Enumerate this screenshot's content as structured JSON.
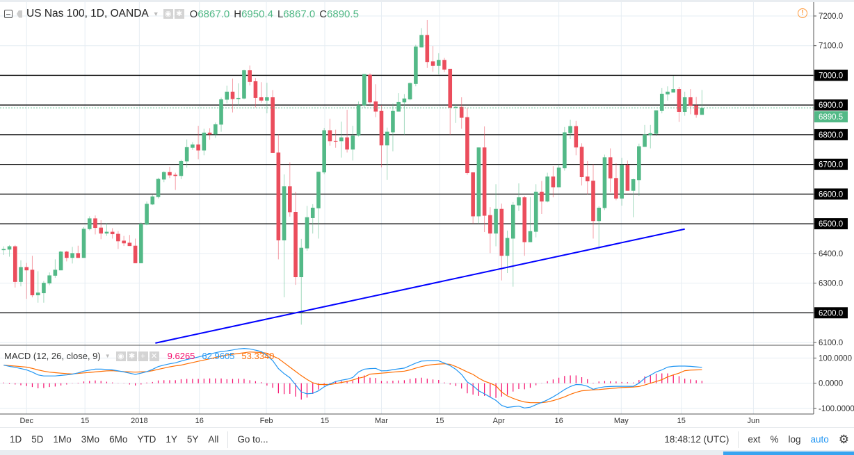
{
  "header": {
    "symbol_title": "US Nas 100, 1D, OANDA",
    "open_label": "O",
    "open": "6867.0",
    "high_label": "H",
    "high": "6950.4",
    "low_label": "L",
    "low": "6867.0",
    "close_label": "C",
    "close": "6890.5"
  },
  "icons": {
    "collapse": "minus-square-icon",
    "flag": "flag-icon",
    "visibility": "eye-icon",
    "settings": "gear-icon",
    "alert": "alert-circle-icon"
  },
  "colors": {
    "up": "#53b987",
    "down": "#eb4d5c",
    "trendline": "#0000ff",
    "macd": "#2196f3",
    "signal": "#ff6d00",
    "histogram": "#f50a6b",
    "level_line": "#000000"
  },
  "price_axis": {
    "ticks": [
      "7200.0",
      "7100.0",
      "7000.0",
      "6900.0",
      "6800.0",
      "6700.0",
      "6600.0",
      "6500.0",
      "6400.0",
      "6300.0",
      "6200.0",
      "6100.0"
    ],
    "range": [
      6100,
      7200
    ],
    "last_price_label": "6890.5",
    "last_price": 6890.5
  },
  "levels": [
    {
      "price": 7000,
      "label": "7000.0"
    },
    {
      "price": 6900,
      "label": "6900.0"
    },
    {
      "price": 6800,
      "label": "6800.0"
    },
    {
      "price": 6700,
      "label": "6700.0"
    },
    {
      "price": 6600,
      "label": "6600.0"
    },
    {
      "price": 6500,
      "label": "6500.0"
    },
    {
      "price": 6200,
      "label": "6200.0"
    }
  ],
  "trendline": {
    "start_price": 6098,
    "end_price": 6482
  },
  "time_axis": {
    "labels": [
      "Dec",
      "15",
      "2018",
      "16",
      "Feb",
      "15",
      "Mar",
      "15",
      "Apr",
      "16",
      "May",
      "15",
      "Jun"
    ]
  },
  "chart_data": {
    "type": "candlestick",
    "ohlc_order": [
      "open",
      "high",
      "low",
      "close"
    ],
    "ylim": [
      6100,
      7200
    ],
    "candles": [
      [
        6411,
        6424,
        6395,
        6415
      ],
      [
        6413,
        6428,
        6389,
        6424
      ],
      [
        6424,
        6428,
        6285,
        6304
      ],
      [
        6304,
        6377,
        6289,
        6354
      ],
      [
        6354,
        6368,
        6247,
        6343
      ],
      [
        6345,
        6392,
        6252,
        6259
      ],
      [
        6259,
        6340,
        6234,
        6268
      ],
      [
        6266,
        6307,
        6234,
        6301
      ],
      [
        6299,
        6336,
        6293,
        6326
      ],
      [
        6325,
        6380,
        6318,
        6345
      ],
      [
        6343,
        6409,
        6343,
        6406
      ],
      [
        6406,
        6409,
        6373,
        6385
      ],
      [
        6385,
        6422,
        6366,
        6401
      ],
      [
        6401,
        6426,
        6385,
        6385
      ],
      [
        6385,
        6489,
        6385,
        6483
      ],
      [
        6482,
        6525,
        6478,
        6518
      ],
      [
        6518,
        6528,
        6464,
        6486
      ],
      [
        6487,
        6512,
        6448,
        6467
      ],
      [
        6467,
        6502,
        6459,
        6473
      ],
      [
        6473,
        6485,
        6450,
        6465
      ],
      [
        6466,
        6475,
        6415,
        6441
      ],
      [
        6443,
        6459,
        6425,
        6434
      ],
      [
        6436,
        6462,
        6425,
        6425
      ],
      [
        6426,
        6450,
        6367,
        6367
      ],
      [
        6367,
        6505,
        6367,
        6500
      ],
      [
        6497,
        6575,
        6495,
        6567
      ],
      [
        6565,
        6597,
        6563,
        6592
      ],
      [
        6590,
        6655,
        6585,
        6651
      ],
      [
        6649,
        6677,
        6640,
        6674
      ],
      [
        6674,
        6692,
        6654,
        6663
      ],
      [
        6665,
        6672,
        6614,
        6661
      ],
      [
        6661,
        6716,
        6650,
        6711
      ],
      [
        6710,
        6784,
        6689,
        6758
      ],
      [
        6756,
        6775,
        6749,
        6767
      ],
      [
        6767,
        6830,
        6717,
        6747
      ],
      [
        6747,
        6820,
        6731,
        6807
      ],
      [
        6807,
        6822,
        6783,
        6801
      ],
      [
        6801,
        6841,
        6789,
        6835
      ],
      [
        6834,
        6925,
        6810,
        6919
      ],
      [
        6918,
        6965,
        6906,
        6945
      ],
      [
        6945,
        6989,
        6875,
        6920
      ],
      [
        6920,
        6973,
        6897,
        6924
      ],
      [
        6922,
        7019,
        6919,
        7017
      ],
      [
        7017,
        7033,
        6966,
        6978
      ],
      [
        6980,
        6991,
        6892,
        6924
      ],
      [
        6926,
        6977,
        6908,
        6915
      ],
      [
        6915,
        6975,
        6872,
        6926
      ],
      [
        6926,
        6950,
        6739,
        6739
      ],
      [
        6740,
        6801,
        6380,
        6444
      ],
      [
        6444,
        6666,
        6252,
        6626
      ],
      [
        6626,
        6707,
        6524,
        6539
      ],
      [
        6540,
        6608,
        6294,
        6320
      ],
      [
        6320,
        6449,
        6160,
        6419
      ],
      [
        6417,
        6560,
        6409,
        6522
      ],
      [
        6519,
        6566,
        6467,
        6554
      ],
      [
        6552,
        6675,
        6450,
        6675
      ],
      [
        6673,
        6823,
        6667,
        6815
      ],
      [
        6815,
        6854,
        6763,
        6778
      ],
      [
        6779,
        6817,
        6756,
        6777
      ],
      [
        6778,
        6844,
        6723,
        6791
      ],
      [
        6791,
        6884,
        6740,
        6750
      ],
      [
        6750,
        6830,
        6713,
        6797
      ],
      [
        6797,
        6912,
        6794,
        6900
      ],
      [
        6899,
        7004,
        6891,
        7004
      ],
      [
        7002,
        7007,
        6904,
        6909
      ],
      [
        6912,
        6970,
        6859,
        6878
      ],
      [
        6880,
        6900,
        6690,
        6764
      ],
      [
        6764,
        6824,
        6648,
        6810
      ],
      [
        6808,
        6905,
        6744,
        6880
      ],
      [
        6878,
        6940,
        6878,
        6910
      ],
      [
        6909,
        6937,
        6800,
        6922
      ],
      [
        6919,
        6976,
        6916,
        6974
      ],
      [
        6971,
        7103,
        6963,
        7097
      ],
      [
        7094,
        7159,
        7094,
        7136
      ],
      [
        7136,
        7186,
        7025,
        7045
      ],
      [
        7047,
        7099,
        7012,
        7032
      ],
      [
        7032,
        7075,
        7003,
        7052
      ],
      [
        7052,
        7059,
        7011,
        7019
      ],
      [
        7022,
        7022,
        6800,
        6891
      ],
      [
        6891,
        6903,
        6840,
        6894
      ],
      [
        6894,
        6926,
        6820,
        6857
      ],
      [
        6859,
        6890,
        6665,
        6671
      ],
      [
        6673,
        6673,
        6500,
        6525
      ],
      [
        6525,
        6757,
        6500,
        6757
      ],
      [
        6757,
        6828,
        6472,
        6527
      ],
      [
        6529,
        6556,
        6401,
        6467
      ],
      [
        6467,
        6633,
        6424,
        6550
      ],
      [
        6550,
        6568,
        6309,
        6392
      ],
      [
        6392,
        6477,
        6334,
        6452
      ],
      [
        6450,
        6573,
        6288,
        6564
      ],
      [
        6562,
        6636,
        6543,
        6589
      ],
      [
        6589,
        6594,
        6392,
        6438
      ],
      [
        6438,
        6590,
        6438,
        6475
      ],
      [
        6473,
        6633,
        6454,
        6608
      ],
      [
        6608,
        6644,
        6533,
        6575
      ],
      [
        6575,
        6672,
        6572,
        6659
      ],
      [
        6659,
        6694,
        6589,
        6623
      ],
      [
        6623,
        6700,
        6623,
        6689
      ],
      [
        6687,
        6826,
        6679,
        6808
      ],
      [
        6805,
        6850,
        6786,
        6829
      ],
      [
        6829,
        6847,
        6731,
        6757
      ],
      [
        6759,
        6771,
        6629,
        6657
      ],
      [
        6659,
        6711,
        6599,
        6643
      ],
      [
        6645,
        6701,
        6450,
        6509
      ],
      [
        6509,
        6559,
        6413,
        6554
      ],
      [
        6553,
        6733,
        6546,
        6724
      ],
      [
        6724,
        6754,
        6606,
        6653
      ],
      [
        6654,
        6704,
        6579,
        6585
      ],
      [
        6585,
        6722,
        6561,
        6698
      ],
      [
        6698,
        6713,
        6611,
        6611
      ],
      [
        6611,
        6652,
        6522,
        6650
      ],
      [
        6647,
        6770,
        6594,
        6761
      ],
      [
        6759,
        6833,
        6759,
        6801
      ],
      [
        6798,
        6833,
        6754,
        6805
      ],
      [
        6803,
        6882,
        6795,
        6882
      ],
      [
        6880,
        6957,
        6872,
        6938
      ],
      [
        6936,
        6963,
        6915,
        6945
      ],
      [
        6942,
        6998,
        6942,
        6954
      ],
      [
        6954,
        6961,
        6843,
        6877
      ],
      [
        6877,
        6945,
        6864,
        6926
      ],
      [
        6926,
        6954,
        6869,
        6897
      ],
      [
        6899,
        6927,
        6857,
        6867
      ],
      [
        6867.0,
        6950.4,
        6867.0,
        6890.5
      ]
    ],
    "macd_indicator": {
      "label": "MACD (12, 26, close, 9)",
      "histogram_value": "9.6265",
      "macd_value": "62.9605",
      "signal_value": "53.3340",
      "axis_ticks": [
        "100.0000",
        "0.0000",
        "-100.0000"
      ],
      "ylim": [
        -120,
        150
      ],
      "macd": [
        72,
        67,
        63,
        58,
        53,
        44,
        33,
        29,
        29,
        29,
        31,
        33,
        36,
        41,
        48,
        52,
        56,
        56,
        55,
        53,
        49,
        45,
        40,
        35,
        40,
        46,
        55,
        66,
        72,
        77,
        81,
        88,
        94,
        99,
        104,
        110,
        116,
        121,
        126,
        128,
        132,
        136,
        138,
        136,
        131,
        126,
        110,
        90,
        58,
        38,
        22,
        -6,
        -35,
        -42,
        -40,
        -30,
        -14,
        -3,
        7,
        12,
        16,
        23,
        45,
        56,
        58,
        59,
        49,
        50,
        54,
        57,
        60,
        70,
        80,
        88,
        89,
        89,
        89,
        80,
        70,
        55,
        35,
        5,
        -10,
        -30,
        -42,
        -55,
        -68,
        -88,
        -96,
        -93,
        -91,
        -98,
        -95,
        -85,
        -76,
        -66,
        -54,
        -40,
        -25,
        -13,
        -5,
        -6,
        -12,
        -24,
        -18,
        -14,
        -13,
        -12,
        -12,
        -12,
        -12,
        0,
        20,
        32,
        45,
        53,
        64,
        67,
        68,
        68,
        67,
        65,
        62.9605
      ],
      "signal": [
        72,
        70,
        68,
        66,
        64,
        59,
        53,
        48,
        44,
        42,
        40,
        38,
        37,
        39,
        41,
        43,
        45,
        47,
        49,
        50,
        48,
        46,
        45,
        44,
        45,
        46,
        50,
        55,
        60,
        65,
        69,
        72,
        77,
        82,
        87,
        92,
        97,
        102,
        107,
        112,
        115,
        118,
        121,
        124,
        123,
        122,
        119,
        108,
        98,
        81,
        64,
        47,
        30,
        15,
        2,
        -5,
        -5,
        -5,
        -1,
        3,
        7,
        13,
        20,
        25,
        36,
        38,
        40,
        42,
        44,
        46,
        48,
        53,
        60,
        66,
        71,
        74,
        76,
        77,
        75,
        66,
        56,
        45,
        35,
        20,
        8,
        0,
        -10,
        -35,
        -50,
        -60,
        -68,
        -74,
        -77,
        -77,
        -77,
        -74,
        -69,
        -62,
        -54,
        -44,
        -36,
        -30,
        -28,
        -26,
        -25,
        -23,
        -21,
        -19,
        -17,
        -16,
        -15,
        -13,
        -7,
        0,
        7,
        14,
        25,
        33,
        40,
        50,
        52,
        53,
        53.334
      ]
    }
  },
  "toolbar": {
    "ranges": [
      "1D",
      "5D",
      "1Mo",
      "3Mo",
      "6Mo",
      "YTD",
      "1Y",
      "5Y",
      "All"
    ],
    "goto_label": "Go to...",
    "clock": "18:48:12 (UTC)",
    "ext_label": "ext",
    "percent_label": "%",
    "log_label": "log",
    "auto_label": "auto"
  }
}
